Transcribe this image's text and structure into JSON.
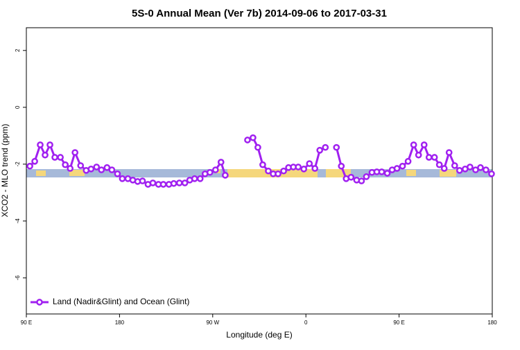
{
  "chart_data": {
    "type": "line",
    "title": "5S-0 Annual Mean (Ver 7b)   2014-09-06 to 2017-03-31",
    "x_label": "Longitude (deg E)",
    "y_label": "XCO2 - MLO trend (ppm)",
    "xlim": [
      90,
      540
    ],
    "ylim": [
      -7.27,
      2.8
    ],
    "xticks": [
      {
        "value": 90,
        "label": "90 E"
      },
      180,
      {
        "value": 270,
        "label": "90 W"
      },
      {
        "value": 360,
        "label": "0"
      },
      {
        "value": 450,
        "label": "90 E"
      },
      {
        "value": 540,
        "label": "180"
      }
    ],
    "yticks": [
      2,
      0,
      -2,
      -4,
      -6
    ],
    "grid": false,
    "legend": "bottom-left",
    "series": [
      {
        "name": "Land (Nadir&Glint) and Ocean (Glint)",
        "color": "#a020f0",
        "x": [
          93.4,
          98.1,
          103.4,
          108.1,
          112.8,
          117.5,
          122.9,
          127.6,
          132.3,
          137.0,
          142.4,
          147.8,
          152.5,
          157.8,
          162.5,
          167.9,
          172.6,
          178.0,
          182.7,
          188.1,
          192.8,
          197.5,
          202.2,
          207.5,
          212.2,
          217.6,
          222.3,
          227.7,
          232.4,
          237.8,
          243.1,
          247.8,
          252.5,
          257.9,
          262.6,
          267.3,
          272.7,
          278.0,
          282.1,
          292.0,
          303.6,
          308.9,
          313.6,
          318.3,
          323.7,
          328.4,
          333.1,
          338.5,
          343.2,
          347.9,
          352.6,
          358.0,
          363.4,
          368.7,
          373.4,
          378.8,
          384.0,
          389.5,
          394.2,
          398.9,
          403.6,
          409.0,
          413.7,
          418.4,
          423.8,
          428.5,
          433.2,
          438.6,
          443.3,
          448.0,
          453.3,
          458.7,
          464.1,
          468.8,
          474.2,
          478.9,
          484.2,
          488.9,
          493.6,
          498.3,
          503.7,
          508.4,
          513.8,
          518.5,
          523.9,
          528.6,
          533.9,
          539.3
        ],
        "values": [
          -2.07,
          -1.9,
          -1.32,
          -1.68,
          -1.32,
          -1.76,
          -1.76,
          -2.02,
          -2.15,
          -1.59,
          -2.05,
          -2.22,
          -2.17,
          -2.1,
          -2.2,
          -2.12,
          -2.2,
          -2.34,
          -2.51,
          -2.51,
          -2.56,
          -2.61,
          -2.59,
          -2.71,
          -2.66,
          -2.71,
          -2.71,
          -2.71,
          -2.68,
          -2.66,
          -2.66,
          -2.56,
          -2.51,
          -2.51,
          -2.34,
          -2.29,
          -2.2,
          -1.93,
          -2.39,
          null,
          -1.15,
          -1.07,
          -1.41,
          -2.02,
          -2.24,
          -2.34,
          -2.34,
          -2.24,
          -2.12,
          -2.1,
          -2.1,
          -2.17,
          -1.98,
          -2.15,
          -1.51,
          -1.41,
          null,
          -1.41,
          -2.07,
          -2.51,
          -2.46,
          -2.56,
          -2.59,
          -2.44,
          -2.29,
          -2.27,
          -2.27,
          -2.32,
          -2.2,
          -2.15,
          -2.07,
          -1.9,
          -1.32,
          -1.68,
          -1.32,
          -1.76,
          -1.76,
          -2.02,
          -2.15,
          -1.59,
          -2.05,
          -2.22,
          -2.17,
          -2.1,
          -2.2,
          -2.12,
          -2.2,
          -2.34
        ]
      }
    ]
  }
}
